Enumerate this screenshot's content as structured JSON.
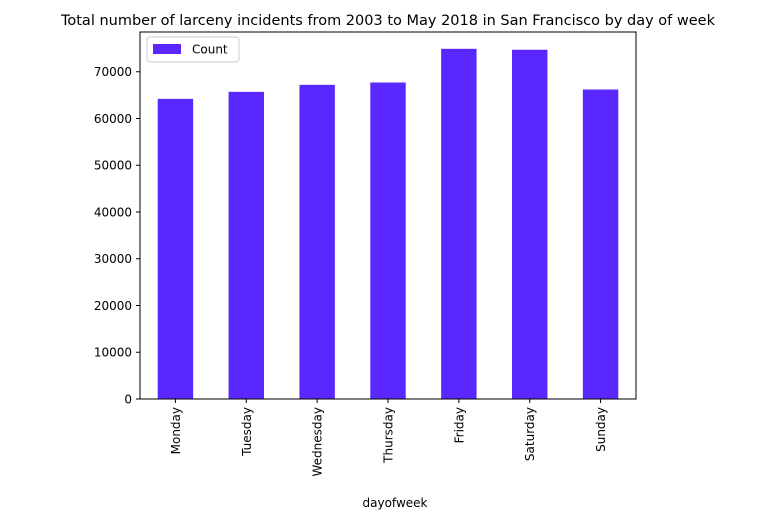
{
  "chart_data": {
    "type": "bar",
    "title": "Total number of larceny incidents from 2003 to May 2018 in San Francisco by day of week",
    "xlabel": "dayofweek",
    "ylabel": "",
    "categories": [
      "Monday",
      "Tuesday",
      "Wednesday",
      "Thursday",
      "Friday",
      "Saturday",
      "Sunday"
    ],
    "series": [
      {
        "name": "Count",
        "values": [
          64200,
          65700,
          67200,
          67700,
          74900,
          74700,
          66200
        ]
      }
    ],
    "ylim": [
      0,
      78500
    ],
    "yticks": [
      0,
      10000,
      20000,
      30000,
      40000,
      50000,
      60000,
      70000
    ],
    "ytick_labels": [
      "0",
      "10000",
      "20000",
      "30000",
      "40000",
      "50000",
      "60000",
      "70000"
    ],
    "bar_color": "#5a28ff",
    "legend": {
      "placement": "upper-left",
      "entries": [
        "Count"
      ]
    },
    "grid": false
  }
}
